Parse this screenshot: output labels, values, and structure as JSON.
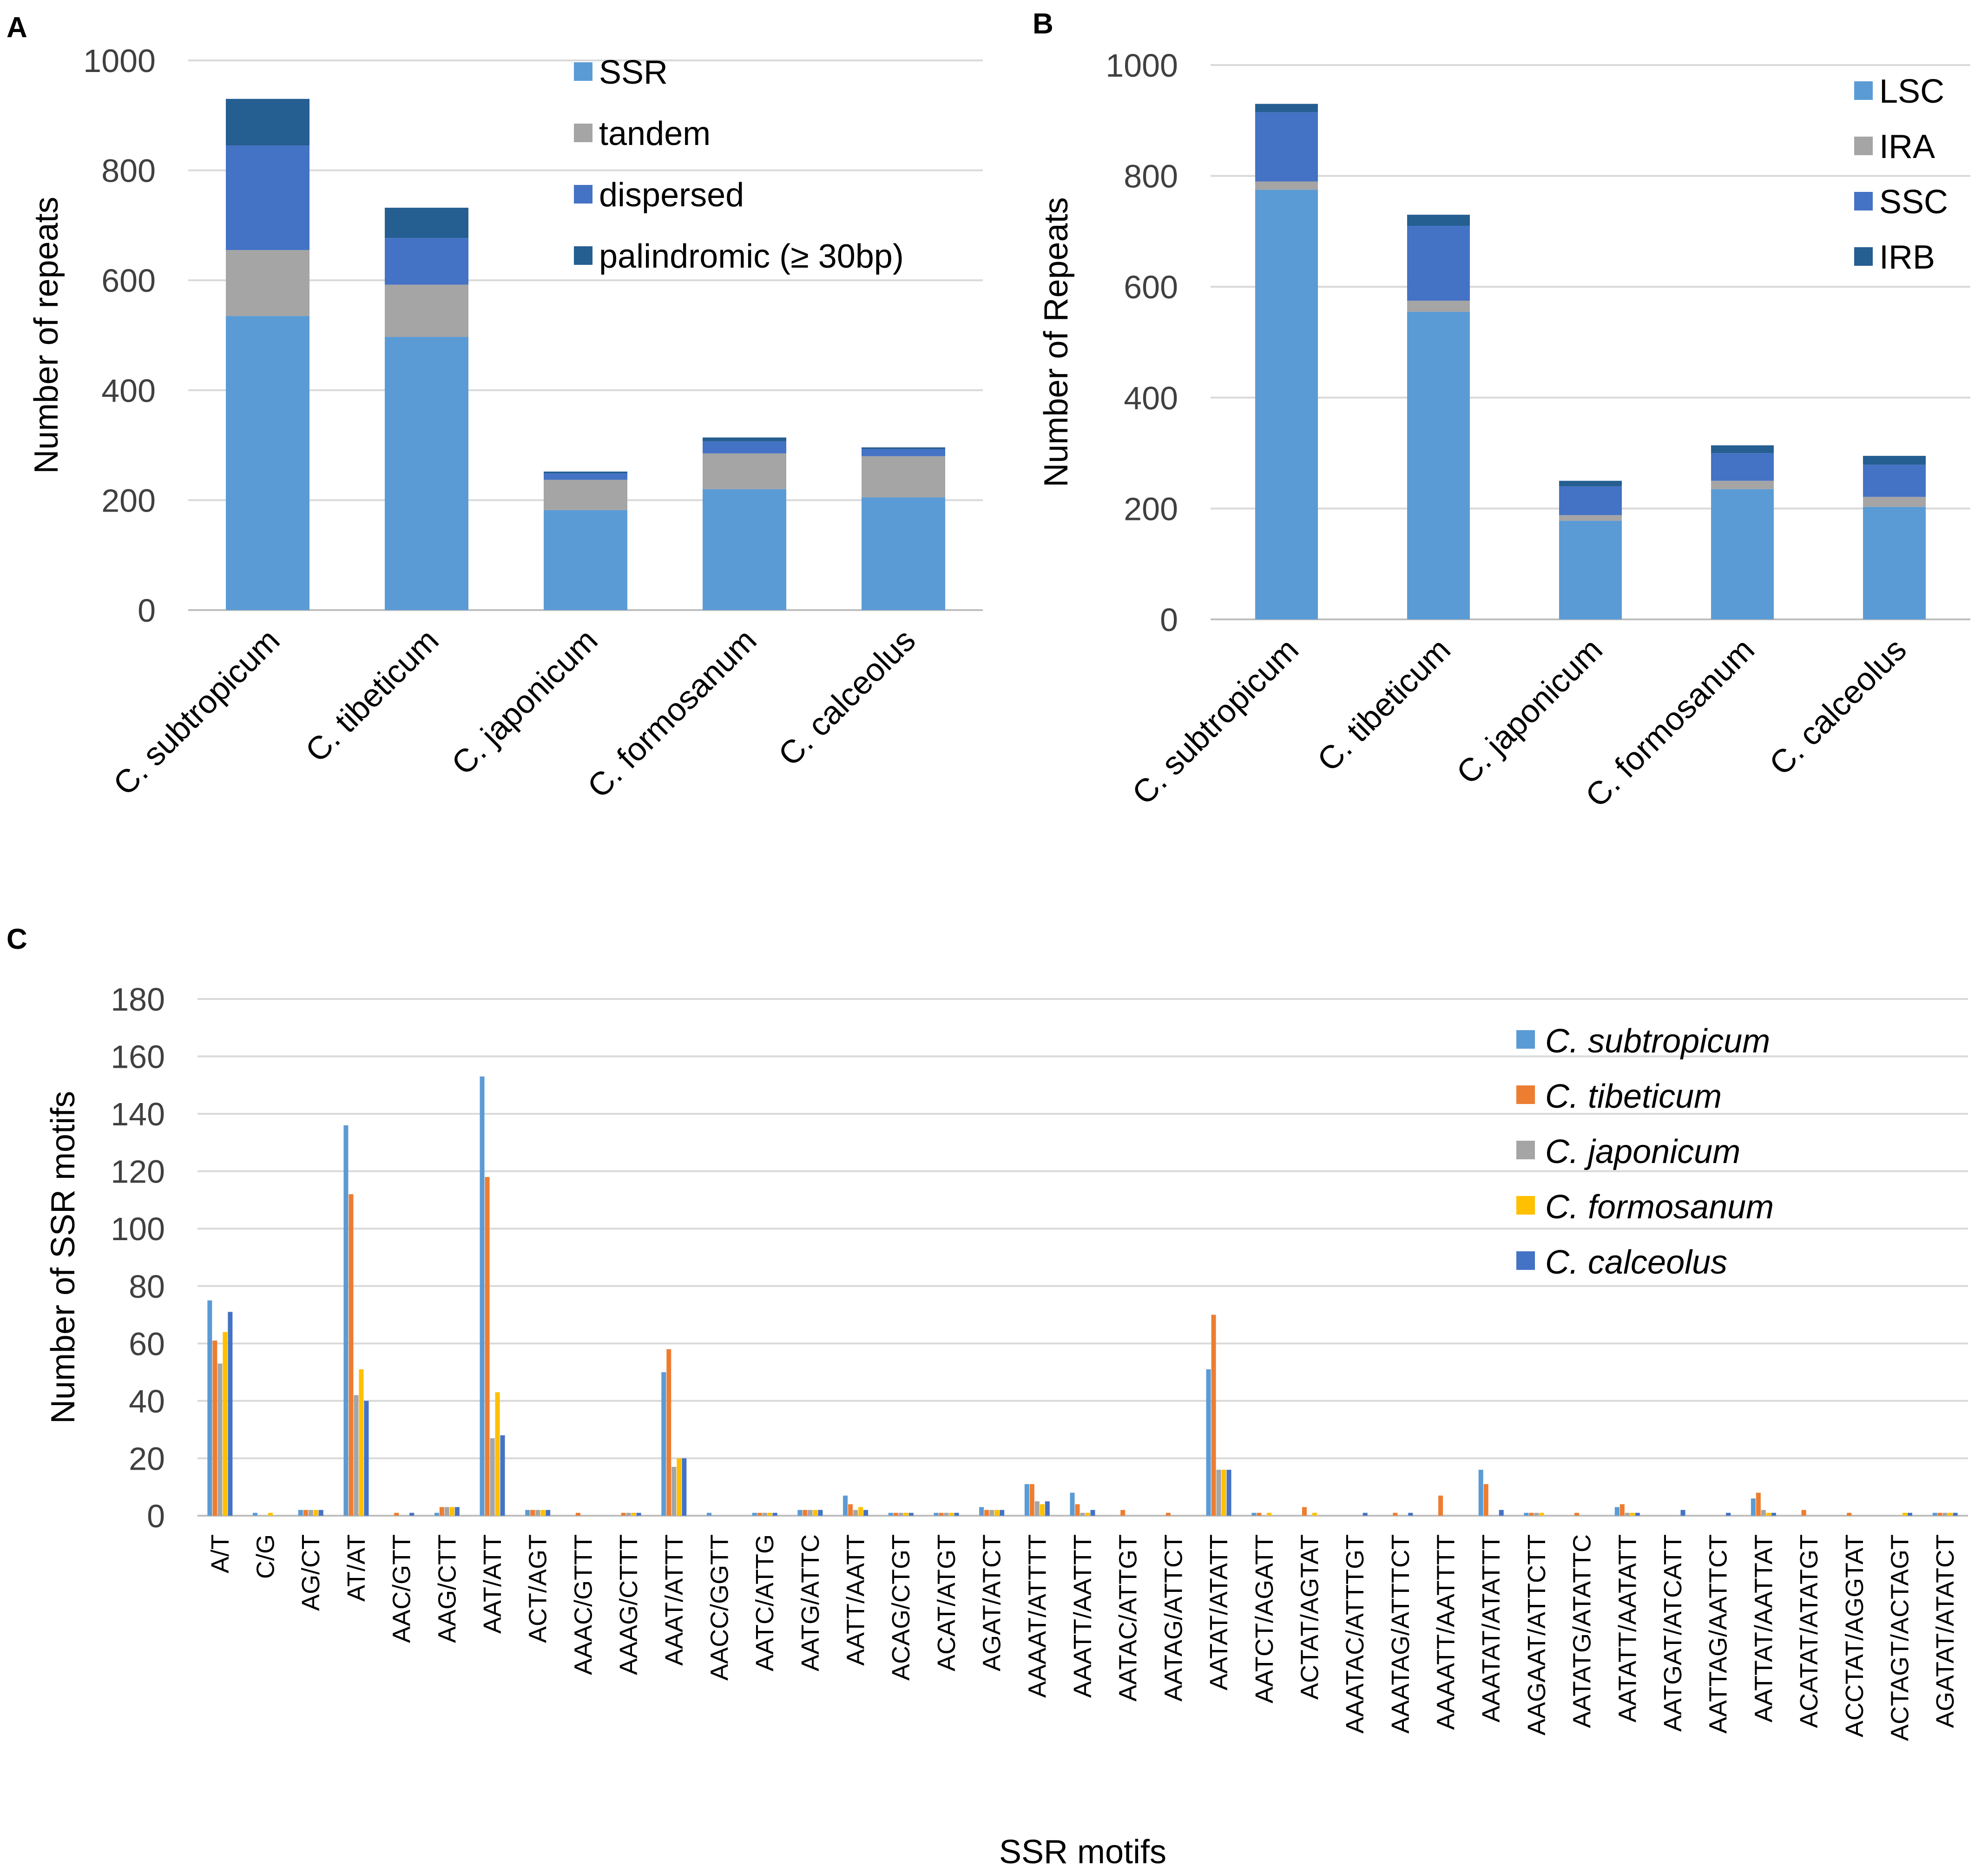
{
  "chart_data": [
    {
      "panel": "A",
      "type": "bar",
      "stacked": true,
      "title": "",
      "xlabel": "",
      "ylabel": "Number of repeats",
      "ylim": [
        0,
        1000
      ],
      "yticks": [
        0,
        200,
        400,
        600,
        800,
        1000
      ],
      "categories": [
        "C. subtropicum",
        "C. tibeticum",
        "C. japonicum",
        "C. formosanum",
        "C. calceolus"
      ],
      "series": [
        {
          "name": "SSR",
          "color": "#5B9BD5",
          "values": [
            535,
            497,
            182,
            220,
            205
          ]
        },
        {
          "name": "tandem",
          "color": "#A5A5A5",
          "values": [
            120,
            95,
            55,
            65,
            75
          ]
        },
        {
          "name": "dispersed",
          "color": "#4472C4",
          "values": [
            190,
            85,
            12,
            22,
            13
          ]
        },
        {
          "name": "palindromic (≥ 30bp)",
          "color": "#255E91",
          "values": [
            85,
            55,
            3,
            7,
            3
          ]
        }
      ],
      "legend": "top-right"
    },
    {
      "panel": "B",
      "type": "bar",
      "stacked": true,
      "title": "",
      "xlabel": "",
      "ylabel": "Number of Repeats",
      "ylim": [
        0,
        1000
      ],
      "yticks": [
        0,
        200,
        400,
        600,
        800,
        1000
      ],
      "categories": [
        "C. subtropicum",
        "C. tibeticum",
        "C. japonicum",
        "C. formosanum",
        "C. calceolus"
      ],
      "series": [
        {
          "name": "LSC",
          "color": "#5B9BD5",
          "values": [
            775,
            555,
            178,
            235,
            203
          ]
        },
        {
          "name": "IRA",
          "color": "#A5A5A5",
          "values": [
            15,
            20,
            10,
            15,
            18
          ]
        },
        {
          "name": "SSC",
          "color": "#4472C4",
          "values": [
            125,
            135,
            52,
            50,
            58
          ]
        },
        {
          "name": "IRB",
          "color": "#255E91",
          "values": [
            15,
            20,
            10,
            14,
            16
          ]
        }
      ],
      "legend": "top-right"
    },
    {
      "panel": "C",
      "type": "bar",
      "stacked": false,
      "title": "",
      "xlabel": "SSR motifs",
      "ylabel": "Number of SSR motifs",
      "ylim": [
        0,
        180
      ],
      "yticks": [
        0,
        20,
        40,
        60,
        80,
        100,
        120,
        140,
        160,
        180
      ],
      "categories": [
        "A/T",
        "C/G",
        "AG/CT",
        "AT/AT",
        "AAC/GTT",
        "AAG/CTT",
        "AAT/ATT",
        "ACT/AGT",
        "AAAC/GTTT",
        "AAAG/CTTT",
        "AAAT/ATTT",
        "AACC/GGTT",
        "AATC/ATTG",
        "AATG/ATTC",
        "AATT/AATT",
        "ACAG/CTGT",
        "ACAT/ATGT",
        "AGAT/ATCT",
        "AAAAT/ATTTT",
        "AAATT/AATTT",
        "AATAC/ATTGT",
        "AATAG/ATTCT",
        "AATAT/ATATT",
        "AATCT/AGATT",
        "ACTAT/AGTAT",
        "AAATAC/ATTTGT",
        "AAATAG/ATTTCT",
        "AAAATT/AATTTT",
        "AAATAT/ATATTT",
        "AAGAAT/ATTCTT",
        "AATATG/ATATTC",
        "AATATT/AATATT",
        "AATGAT/ATCATT",
        "AATTAG/AATTCT",
        "AATTAT/AATTAT",
        "ACATAT/ATATGT",
        "ACCTAT/AGGTAT",
        "ACTAGT/ACTAGT",
        "AGATAT/ATATCT"
      ],
      "series": [
        {
          "name": "C. subtropicum",
          "color": "#5B9BD5",
          "values": [
            75,
            1,
            2,
            136,
            0,
            1,
            153,
            2,
            0,
            0,
            50,
            1,
            1,
            2,
            7,
            1,
            1,
            3,
            11,
            8,
            0,
            0,
            51,
            1,
            0,
            0,
            0,
            0,
            16,
            1,
            0,
            3,
            0,
            0,
            6,
            0,
            0,
            0,
            1
          ]
        },
        {
          "name": "C. tibeticum",
          "color": "#ED7D31",
          "values": [
            61,
            0,
            2,
            112,
            1,
            3,
            118,
            2,
            1,
            1,
            58,
            0,
            1,
            2,
            4,
            1,
            1,
            2,
            11,
            4,
            2,
            1,
            70,
            1,
            3,
            0,
            1,
            7,
            11,
            1,
            1,
            4,
            0,
            0,
            8,
            2,
            1,
            0,
            1
          ]
        },
        {
          "name": "C. japonicum",
          "color": "#A5A5A5",
          "values": [
            53,
            0,
            2,
            42,
            0,
            3,
            27,
            2,
            0,
            1,
            17,
            0,
            1,
            2,
            2,
            1,
            1,
            2,
            5,
            1,
            0,
            0,
            16,
            0,
            0,
            0,
            0,
            0,
            0,
            1,
            0,
            1,
            0,
            0,
            2,
            0,
            0,
            0,
            1
          ]
        },
        {
          "name": "C. formosanum",
          "color": "#FFC000",
          "values": [
            64,
            1,
            2,
            51,
            0,
            3,
            43,
            2,
            0,
            1,
            20,
            0,
            1,
            2,
            3,
            1,
            1,
            2,
            4,
            1,
            0,
            0,
            16,
            1,
            1,
            0,
            0,
            0,
            0,
            1,
            0,
            1,
            0,
            0,
            1,
            0,
            0,
            1,
            1
          ]
        },
        {
          "name": "C. calceolus",
          "color": "#4472C4",
          "values": [
            71,
            0,
            2,
            40,
            1,
            3,
            28,
            2,
            0,
            1,
            20,
            0,
            1,
            2,
            2,
            1,
            1,
            2,
            5,
            2,
            0,
            0,
            16,
            0,
            0,
            1,
            1,
            0,
            2,
            0,
            0,
            1,
            2,
            1,
            1,
            0,
            0,
            1,
            1
          ]
        }
      ],
      "legend": "top-right"
    }
  ],
  "labels": {
    "panel_a": "A",
    "panel_b": "B",
    "panel_c": "C"
  }
}
